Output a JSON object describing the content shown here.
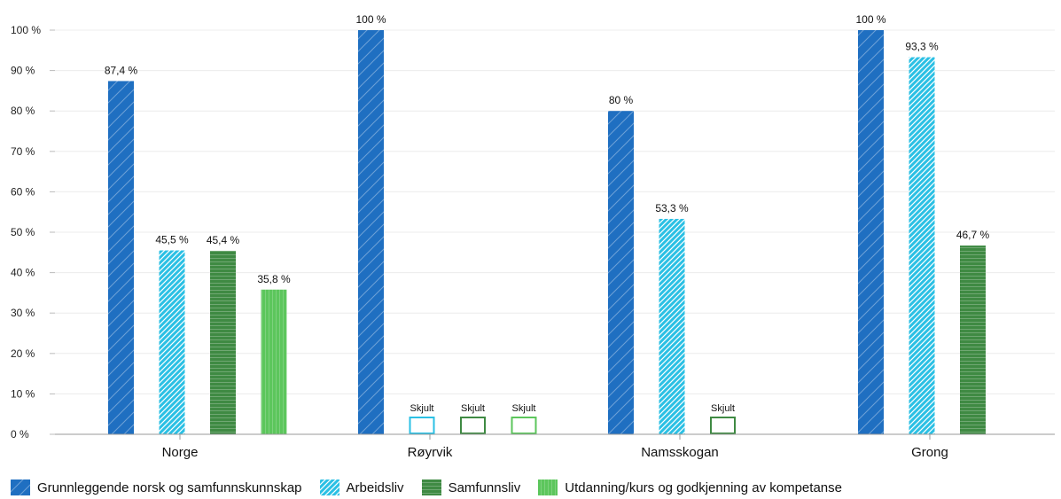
{
  "chart_data": {
    "type": "bar",
    "categories": [
      "Norge",
      "Røyrvik",
      "Namsskogan",
      "Grong"
    ],
    "series": [
      {
        "name": "Grunnleggende norsk og samfunnskunnskap",
        "color": "#1f6fc1",
        "pattern": "diagonal",
        "values": [
          87.4,
          100,
          80,
          100
        ],
        "labels": [
          "87,4 %",
          "100 %",
          "80 %",
          "100 %"
        ]
      },
      {
        "name": "Arbeidsliv",
        "color": "#2bc0e4",
        "pattern": "diagonal-dense",
        "values": [
          45.5,
          null,
          53.3,
          93.3
        ],
        "labels": [
          "45,5 %",
          "Skjult",
          "53,3 %",
          "93,3 %"
        ]
      },
      {
        "name": "Samfunnsliv",
        "color": "#3f8a43",
        "pattern": "horizontal",
        "values": [
          45.4,
          null,
          null,
          46.7
        ],
        "labels": [
          "45,4 %",
          "Skjult",
          "Skjult",
          "46,7 %"
        ]
      },
      {
        "name": "Utdanning/kurs og godkjenning av kompetanse",
        "color": "#5cc65c",
        "pattern": "vertical",
        "values": [
          35.8,
          null,
          null,
          null
        ],
        "labels": [
          "35,8 %",
          "Skjult",
          null,
          null
        ]
      }
    ],
    "yticks": [
      "0 %",
      "10 %",
      "20 %",
      "30 %",
      "40 %",
      "50 %",
      "60 %",
      "70 %",
      "80 %",
      "90 %",
      "100 %"
    ],
    "ylim": [
      0,
      100
    ],
    "grid": true,
    "legend_position": "bottom"
  }
}
